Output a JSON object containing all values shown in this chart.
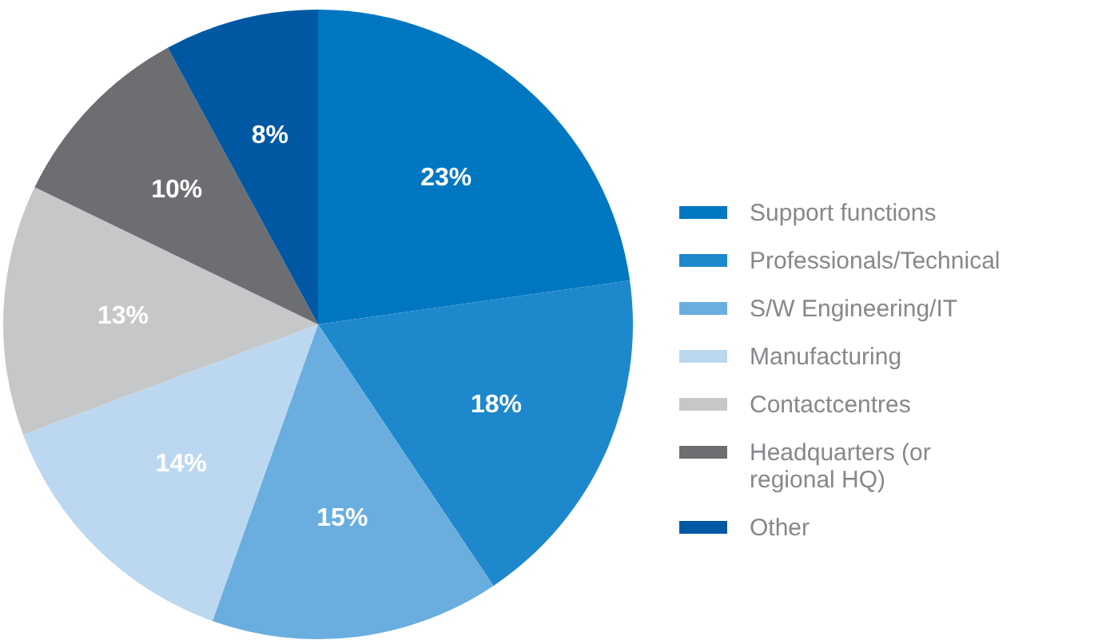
{
  "chart_data": {
    "type": "pie",
    "categories": [
      "Support functions",
      "Professionals/Technical",
      "S/W Engineering/IT",
      "Manufacturing",
      "Contactcentres",
      "Headquarters (or regional HQ)",
      "Other"
    ],
    "values": [
      23,
      18,
      15,
      14,
      13,
      10,
      8
    ],
    "colors": [
      "#0077c0",
      "#1e88cc",
      "#6aaee0",
      "#bcd8f0",
      "#c6c7c9",
      "#6d6e71",
      "#0058a3"
    ],
    "value_labels": [
      "23%",
      "18%",
      "15%",
      "14%",
      "13%",
      "10%",
      "8%"
    ],
    "legend": "right"
  }
}
